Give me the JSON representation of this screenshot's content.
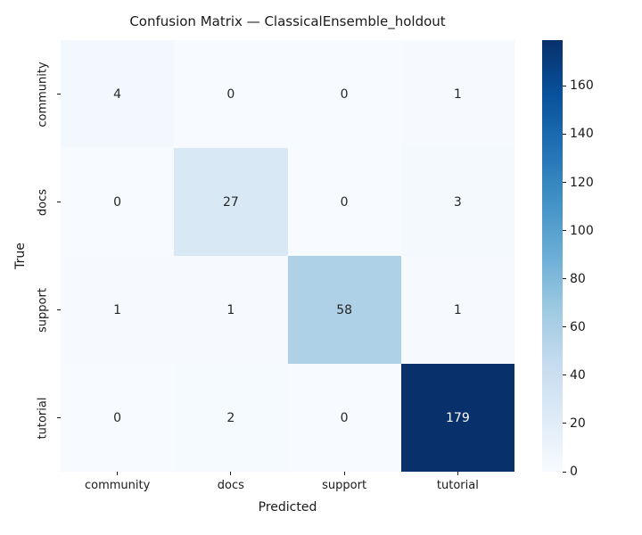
{
  "chart_data": {
    "type": "heatmap",
    "title": "Confusion Matrix — ClassicalEnsemble_holdout",
    "xlabel": "Predicted",
    "ylabel": "True",
    "x_categories": [
      "community",
      "docs",
      "support",
      "tutorial"
    ],
    "y_categories": [
      "community",
      "docs",
      "support",
      "tutorial"
    ],
    "matrix": [
      [
        4,
        0,
        0,
        1
      ],
      [
        0,
        27,
        0,
        3
      ],
      [
        1,
        1,
        58,
        1
      ],
      [
        0,
        2,
        0,
        179
      ]
    ],
    "colormap": "Blues",
    "vmin": 0,
    "vmax": 179,
    "colorbar_ticks": [
      0,
      20,
      40,
      60,
      80,
      100,
      120,
      140,
      160
    ],
    "colorbar_position": "right",
    "grid": false,
    "colors": {
      "cmap_low": "#f7fbff",
      "cmap_high": "#08306b",
      "annotation_dark": "#262626",
      "annotation_light": "#ffffff",
      "background": "#ffffff",
      "tick_color": "#1a1a1a"
    }
  }
}
